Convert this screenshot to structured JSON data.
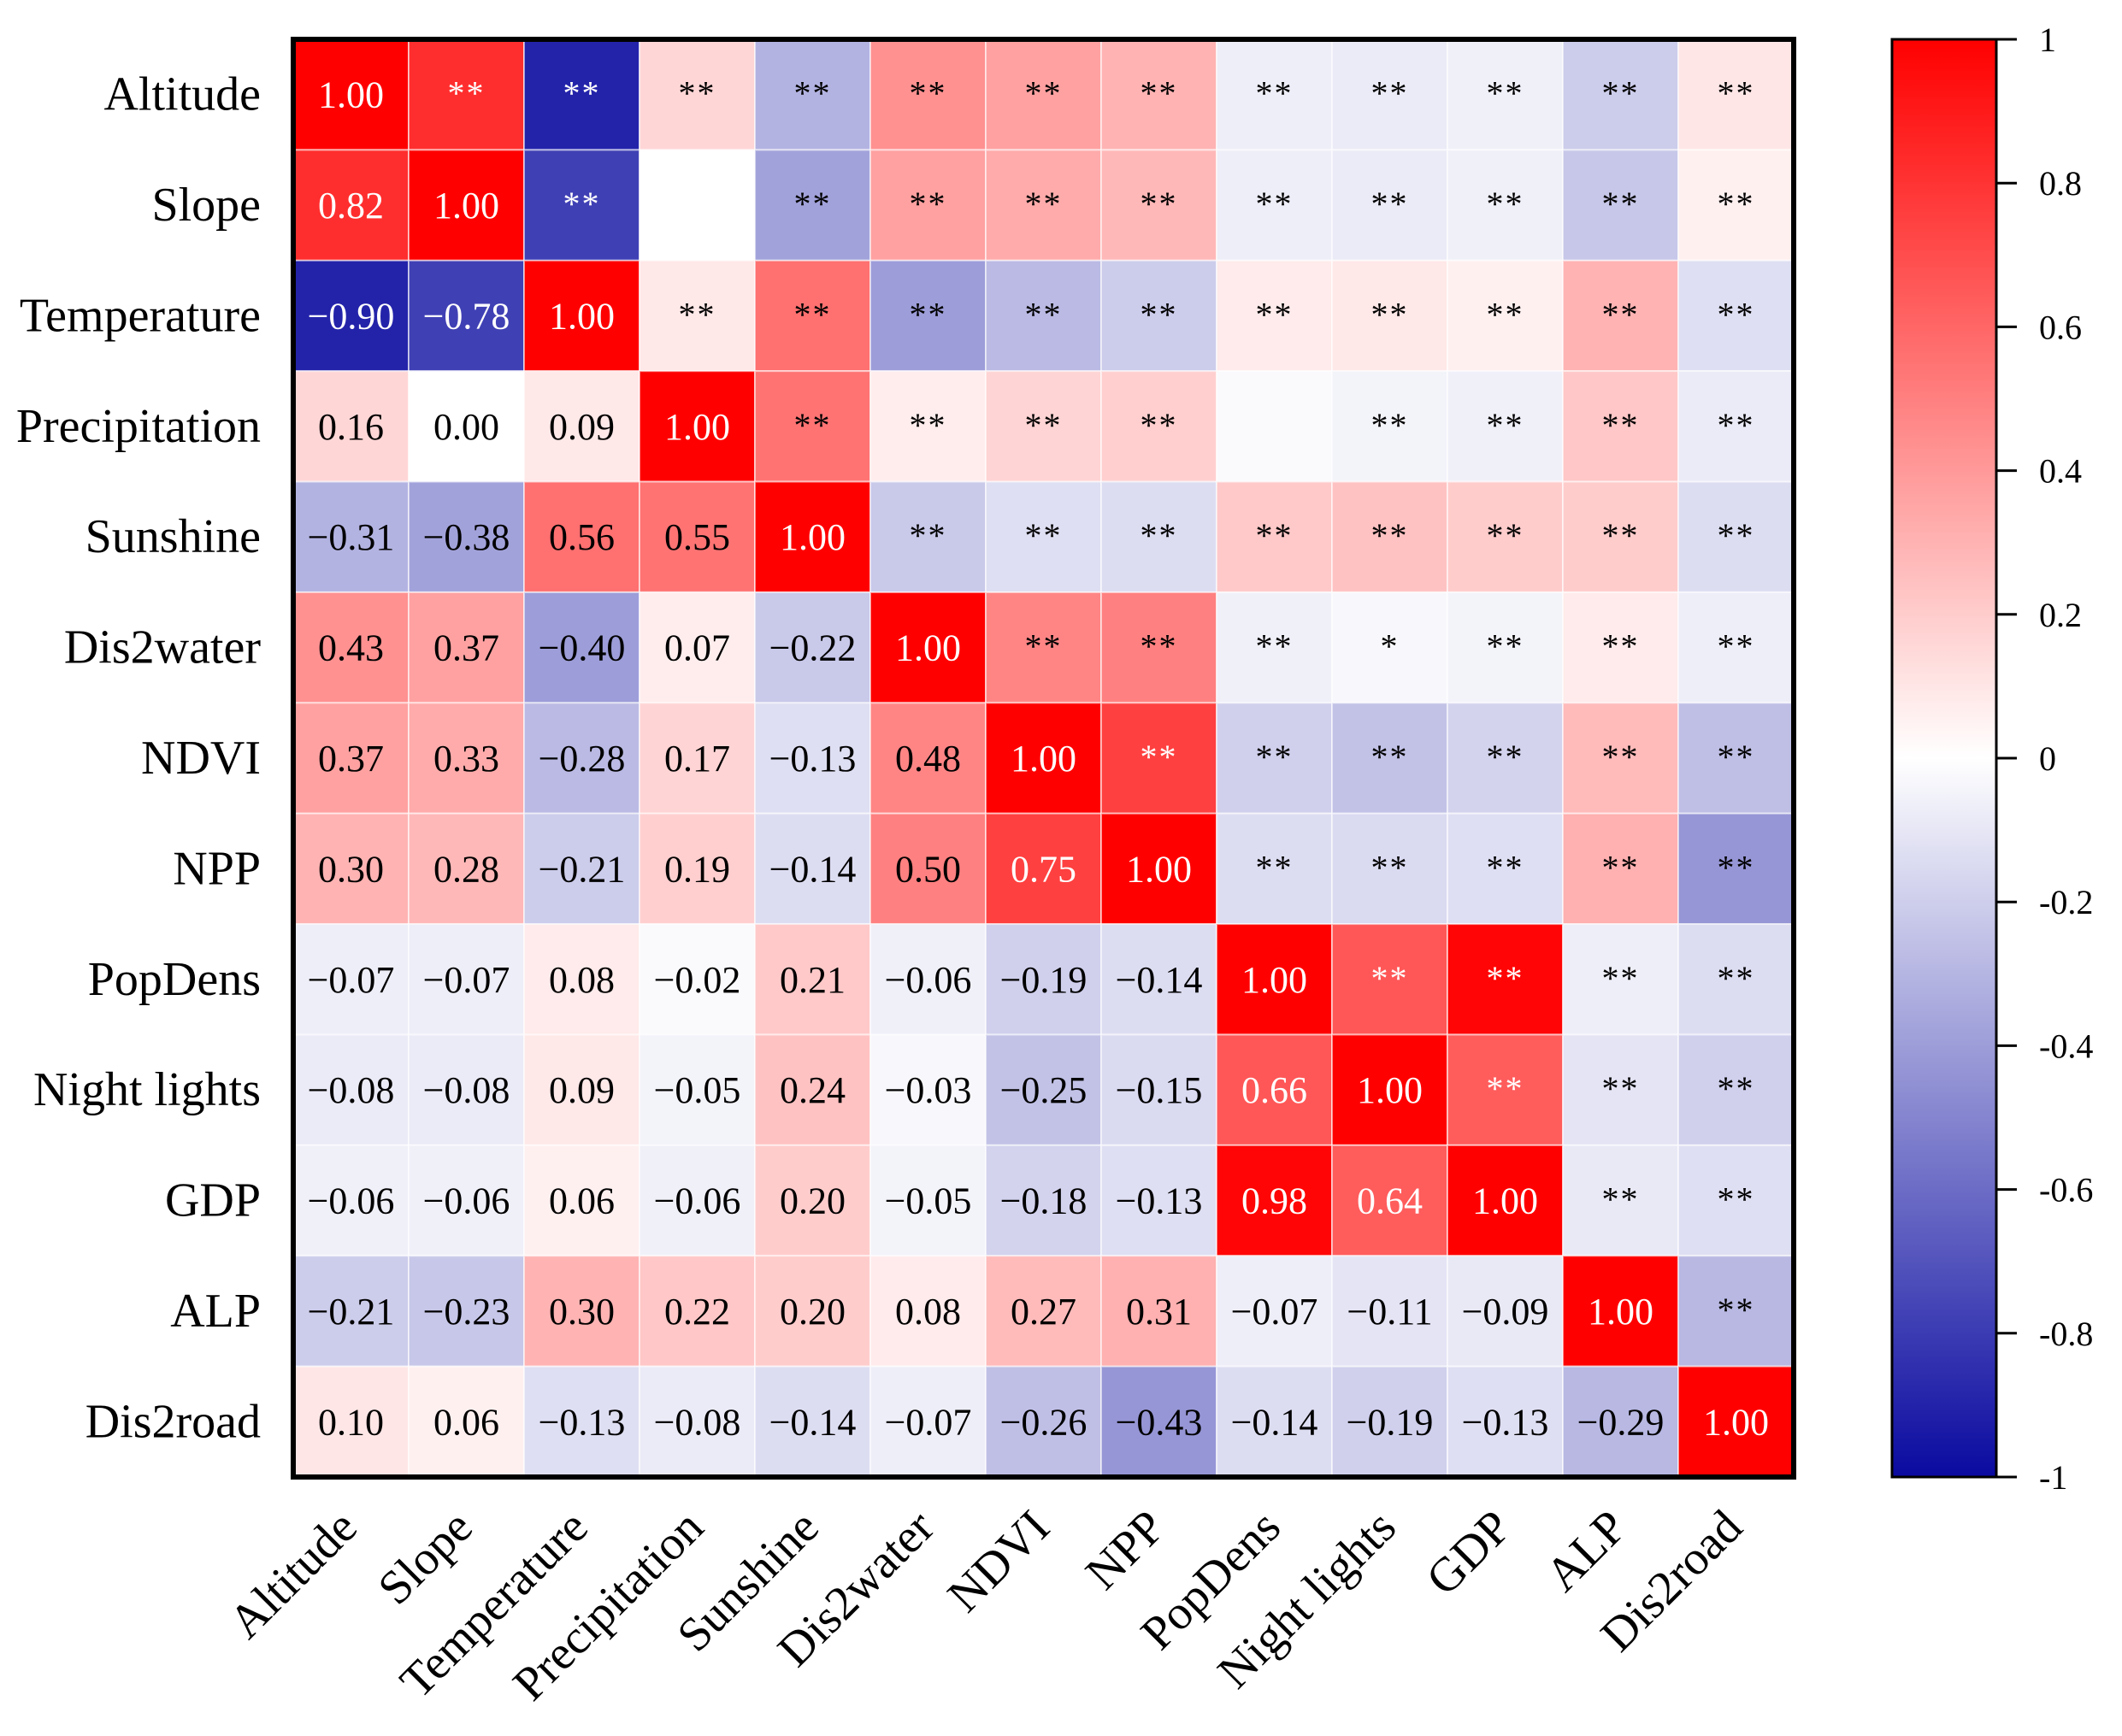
{
  "chart_data": {
    "type": "heatmap",
    "title": "",
    "variables": [
      "Altitude",
      "Slope",
      "Temperature",
      "Precipitation",
      "Sunshine",
      "Dis2water",
      "NDVI",
      "NPP",
      "PopDens",
      "Night lights",
      "GDP",
      "ALP",
      "Dis2road"
    ],
    "matrix": [
      [
        1.0,
        0.82,
        -0.9,
        0.16,
        -0.31,
        0.43,
        0.37,
        0.3,
        -0.07,
        -0.08,
        -0.06,
        -0.21,
        0.1
      ],
      [
        0.82,
        1.0,
        -0.78,
        0.0,
        -0.38,
        0.37,
        0.33,
        0.28,
        -0.07,
        -0.08,
        -0.06,
        -0.23,
        0.06
      ],
      [
        -0.9,
        -0.78,
        1.0,
        0.09,
        0.56,
        -0.4,
        -0.28,
        -0.21,
        0.08,
        0.09,
        0.06,
        0.3,
        -0.13
      ],
      [
        0.16,
        0.0,
        0.09,
        1.0,
        0.55,
        0.07,
        0.17,
        0.19,
        -0.02,
        -0.05,
        -0.06,
        0.22,
        -0.08
      ],
      [
        -0.31,
        -0.38,
        0.56,
        0.55,
        1.0,
        -0.22,
        -0.13,
        -0.14,
        0.21,
        0.24,
        0.2,
        0.2,
        -0.14
      ],
      [
        0.43,
        0.37,
        -0.4,
        0.07,
        -0.22,
        1.0,
        0.48,
        0.5,
        -0.06,
        -0.03,
        -0.05,
        0.08,
        -0.07
      ],
      [
        0.37,
        0.33,
        -0.28,
        0.17,
        -0.13,
        0.48,
        1.0,
        0.75,
        -0.19,
        -0.25,
        -0.18,
        0.27,
        -0.26
      ],
      [
        0.3,
        0.28,
        -0.21,
        0.19,
        -0.14,
        0.5,
        0.75,
        1.0,
        -0.14,
        -0.15,
        -0.13,
        0.31,
        -0.43
      ],
      [
        -0.07,
        -0.07,
        0.08,
        -0.02,
        0.21,
        -0.06,
        -0.19,
        -0.14,
        1.0,
        0.66,
        0.98,
        -0.07,
        -0.14
      ],
      [
        -0.08,
        -0.08,
        0.09,
        -0.05,
        0.24,
        -0.03,
        -0.25,
        -0.15,
        0.66,
        1.0,
        0.64,
        -0.11,
        -0.19
      ],
      [
        -0.06,
        -0.06,
        0.06,
        -0.06,
        0.2,
        -0.05,
        -0.18,
        -0.13,
        0.98,
        0.64,
        1.0,
        -0.09,
        -0.13
      ],
      [
        -0.21,
        -0.23,
        0.3,
        0.22,
        0.2,
        0.08,
        0.27,
        0.31,
        -0.07,
        -0.11,
        -0.09,
        1.0,
        -0.29
      ],
      [
        0.1,
        0.06,
        -0.13,
        -0.08,
        -0.14,
        -0.07,
        -0.26,
        -0.43,
        -0.14,
        -0.19,
        -0.13,
        -0.29,
        1.0
      ]
    ],
    "significance": [
      [
        "",
        "**",
        "**",
        "**",
        "**",
        "**",
        "**",
        "**",
        "**",
        "**",
        "**",
        "**",
        "**"
      ],
      [
        "",
        "",
        "**",
        "",
        "**",
        "**",
        "**",
        "**",
        "**",
        "**",
        "**",
        "**",
        "**"
      ],
      [
        "",
        "",
        "",
        "**",
        "**",
        "**",
        "**",
        "**",
        "**",
        "**",
        "**",
        "**",
        "**"
      ],
      [
        "",
        "",
        "",
        "",
        "**",
        "**",
        "**",
        "**",
        "",
        "**",
        "**",
        "**",
        "**"
      ],
      [
        "",
        "",
        "",
        "",
        "",
        "**",
        "**",
        "**",
        "**",
        "**",
        "**",
        "**",
        "**"
      ],
      [
        "",
        "",
        "",
        "",
        "",
        "",
        "**",
        "**",
        "**",
        "*",
        "**",
        "**",
        "**"
      ],
      [
        "",
        "",
        "",
        "",
        "",
        "",
        "",
        "**",
        "**",
        "**",
        "**",
        "**",
        "**"
      ],
      [
        "",
        "",
        "",
        "",
        "",
        "",
        "",
        "",
        "**",
        "**",
        "**",
        "**",
        "**"
      ],
      [
        "",
        "",
        "",
        "",
        "",
        "",
        "",
        "",
        "",
        "**",
        "**",
        "**",
        "**"
      ],
      [
        "",
        "",
        "",
        "",
        "",
        "",
        "",
        "",
        "",
        "",
        "**",
        "**",
        "**"
      ],
      [
        "",
        "",
        "",
        "",
        "",
        "",
        "",
        "",
        "",
        "",
        "",
        "**",
        "**"
      ],
      [
        "",
        "",
        "",
        "",
        "",
        "",
        "",
        "",
        "",
        "",
        "",
        "",
        "**"
      ],
      [
        "",
        "",
        "",
        "",
        "",
        "",
        "",
        "",
        "",
        "",
        "",
        "",
        ""
      ]
    ],
    "lower_triangle_shows": "correlation values",
    "upper_triangle_shows": "significance marks",
    "colorbar": {
      "range": [
        -1,
        1
      ],
      "ticks": [
        1,
        0.8,
        0.6,
        0.4,
        0.2,
        0,
        -0.2,
        -0.4,
        -0.6,
        -0.8,
        -1
      ],
      "tick_labels": [
        "1",
        "0.8",
        "0.6",
        "0.4",
        "0.2",
        "0",
        "-0.2",
        "-0.4",
        "-0.6",
        "-0.8",
        "-1"
      ],
      "colors": {
        "negative": "#0a0aa0",
        "zero": "#ffffff",
        "positive": "#ff0000"
      }
    }
  }
}
